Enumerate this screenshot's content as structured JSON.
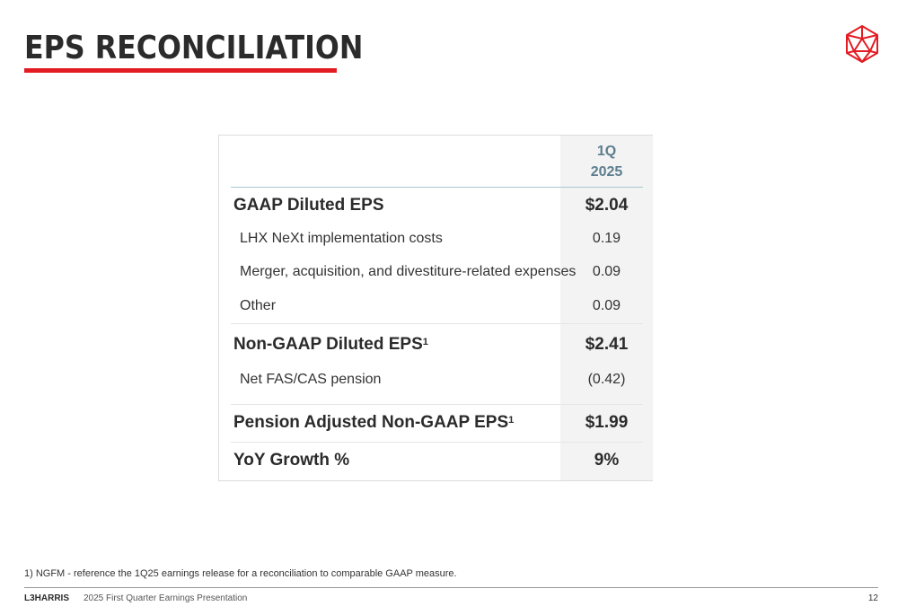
{
  "header": {
    "title": "EPS RECONCILIATION"
  },
  "table": {
    "period_line1": "1Q",
    "period_line2": "2025",
    "rows": [
      {
        "label": "GAAP Diluted EPS",
        "value": "$2.04"
      },
      {
        "label": "LHX NeXt implementation costs",
        "value": "0.19"
      },
      {
        "label": "Merger, acquisition, and divestiture-related expenses",
        "value": "0.09"
      },
      {
        "label": "Other",
        "value": "0.09"
      },
      {
        "label": "Non-GAAP Diluted EPS",
        "sup": "1",
        "value": "$2.41"
      },
      {
        "label": "Net FAS/CAS pension",
        "value": "(0.42)"
      },
      {
        "label": "Pension Adjusted Non-GAAP EPS",
        "sup": "1",
        "value": "$1.99"
      },
      {
        "label": "YoY Growth %",
        "value": "9%"
      }
    ]
  },
  "footnote": "1) NGFM - reference the 1Q25 earnings release for a reconciliation to comparable GAAP measure.",
  "footer": {
    "brand": "L3HARRIS",
    "presentation": "2025 First Quarter Earnings Presentation",
    "page_number": "12"
  },
  "colors": {
    "accent": "#e31b23",
    "header_text": "#5c7e8f"
  },
  "icons": {
    "logo": "l3harris-geodesic-logo-icon"
  }
}
